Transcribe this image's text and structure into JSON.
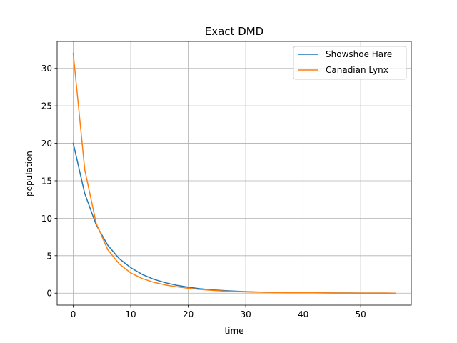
{
  "chart_data": {
    "type": "line",
    "title": "Exact DMD",
    "xlabel": "time",
    "ylabel": "population",
    "xlim": [
      -2.8,
      58.8
    ],
    "ylim": [
      -1.6,
      33.6
    ],
    "xticks": [
      0,
      10,
      20,
      30,
      40,
      50
    ],
    "yticks": [
      0,
      5,
      10,
      15,
      20,
      25,
      30
    ],
    "grid": true,
    "legend_position": "top-right",
    "x": [
      0,
      2,
      4,
      6,
      8,
      10,
      12,
      14,
      16,
      18,
      20,
      22,
      24,
      26,
      28,
      30,
      32,
      34,
      36,
      38,
      40,
      42,
      44,
      46,
      48,
      50,
      52,
      54,
      56
    ],
    "series": [
      {
        "name": "Showshoe Hare",
        "color": "#1f77b4",
        "values": [
          20.0,
          13.3,
          9.1,
          6.4,
          4.6,
          3.4,
          2.5,
          1.85,
          1.4,
          1.05,
          0.8,
          0.6,
          0.45,
          0.35,
          0.27,
          0.2,
          0.15,
          0.12,
          0.09,
          0.07,
          0.05,
          0.04,
          0.03,
          0.025,
          0.02,
          0.015,
          0.01,
          0.01,
          0.0
        ]
      },
      {
        "name": "Canadian Lynx",
        "color": "#ff7f0e",
        "values": [
          32.0,
          16.5,
          9.3,
          5.8,
          3.9,
          2.7,
          1.95,
          1.45,
          1.1,
          0.85,
          0.65,
          0.5,
          0.38,
          0.29,
          0.22,
          0.17,
          0.13,
          0.1,
          0.08,
          0.06,
          0.05,
          0.04,
          0.03,
          0.02,
          0.015,
          0.01,
          0.01,
          0.005,
          0.0
        ]
      }
    ]
  }
}
